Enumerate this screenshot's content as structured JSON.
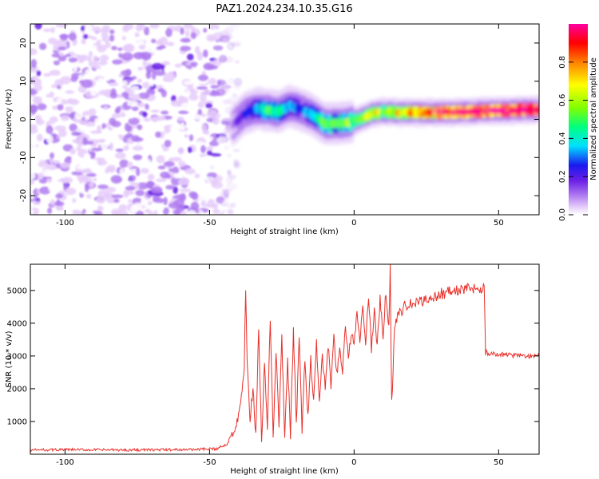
{
  "title": "PAZ1.2024.234.10.35.G16",
  "chart_data": [
    {
      "type": "heatmap",
      "xlabel": "Height of straight line (km)",
      "ylabel": "Frequency (Hz)",
      "xlim": [
        -112,
        64
      ],
      "ylim": [
        -25,
        25
      ],
      "xticks": [
        -100,
        -50,
        0,
        50
      ],
      "yticks": [
        -20,
        -10,
        0,
        10,
        20
      ],
      "grid": false,
      "colorbar": {
        "label": "Normalized spectral amplitude",
        "range": [
          0,
          1
        ],
        "ticks": [
          0.0,
          0.2,
          0.4,
          0.6,
          0.8
        ],
        "colors": [
          "#ffffff",
          "#e6cdfa",
          "#b07cf0",
          "#6a1ee6",
          "#1a1aee",
          "#00e0ff",
          "#00ff80",
          "#80ff00",
          "#ffff00",
          "#ff8000",
          "#ff0000",
          "#ff00a0"
        ]
      },
      "noise_region_x": [
        -112,
        -42
      ],
      "ridge": {
        "x": [
          -42,
          -38,
          -34,
          -30,
          -26,
          -22,
          -18,
          -14,
          -10,
          -6,
          -2,
          2,
          6,
          10,
          15,
          20,
          30,
          40,
          50,
          60,
          64
        ],
        "frequency_hz": [
          -1.5,
          1.5,
          2.8,
          2.5,
          2.0,
          3.5,
          2.5,
          1.0,
          -1.2,
          -1.0,
          -0.8,
          0.0,
          1.5,
          2.0,
          1.8,
          1.8,
          1.8,
          2.0,
          2.2,
          2.5,
          2.5
        ],
        "amplitude": [
          0.1,
          0.2,
          0.3,
          0.45,
          0.4,
          0.3,
          0.25,
          0.35,
          0.5,
          0.45,
          0.5,
          0.55,
          0.6,
          0.55,
          0.6,
          0.7,
          0.8,
          0.85,
          0.85,
          0.9,
          0.95
        ]
      }
    },
    {
      "type": "line",
      "xlabel": "Height of straight line (km)",
      "ylabel": "SNR (10 * v/v)",
      "xlim": [
        -112,
        64
      ],
      "ylim": [
        0,
        5800
      ],
      "xticks": [
        -100,
        -50,
        0,
        50
      ],
      "yticks": [
        1000,
        2000,
        3000,
        4000,
        5000
      ],
      "grid": false,
      "color": "#e8302a",
      "series": [
        {
          "x": [
            -112,
            -100,
            -80,
            -60,
            -48,
            -44,
            -42,
            -40,
            -38,
            -37.5,
            -37,
            -36,
            -35,
            -34,
            -33,
            -32,
            -31,
            -30,
            -29,
            -28,
            -27,
            -26,
            -25,
            -24,
            -23,
            -22,
            -21,
            -20,
            -19,
            -18,
            -17,
            -16,
            -15,
            -14,
            -13,
            -12,
            -11,
            -10,
            -9,
            -8,
            -7,
            -6,
            -5,
            -4,
            -3,
            -2,
            -1,
            0,
            1,
            2,
            3,
            4,
            5,
            6,
            7,
            8,
            9,
            10,
            11,
            12,
            12.5,
            13,
            14,
            15,
            16,
            17,
            18,
            20,
            22,
            25,
            28,
            30,
            35,
            40,
            45,
            45.5,
            46,
            50,
            55,
            60,
            64
          ],
          "y": [
            130,
            140,
            130,
            140,
            160,
            300,
            700,
            1200,
            2500,
            5100,
            3000,
            1000,
            2000,
            600,
            3800,
            400,
            2800,
            700,
            4100,
            500,
            3200,
            800,
            3600,
            400,
            2800,
            600,
            3800,
            900,
            3500,
            700,
            3000,
            1100,
            2900,
            1500,
            3400,
            1600,
            3000,
            2000,
            3300,
            2100,
            3500,
            2400,
            3200,
            2600,
            3900,
            3000,
            3700,
            3300,
            4300,
            3400,
            4600,
            3300,
            4900,
            3200,
            4400,
            3300,
            4700,
            3600,
            5000,
            3800,
            5750,
            1500,
            3900,
            4200,
            4300,
            4500,
            4500,
            4600,
            4600,
            4750,
            4800,
            4900,
            5000,
            5050,
            5100,
            3100,
            3070,
            3050,
            3020,
            3000,
            3000
          ]
        }
      ]
    }
  ]
}
